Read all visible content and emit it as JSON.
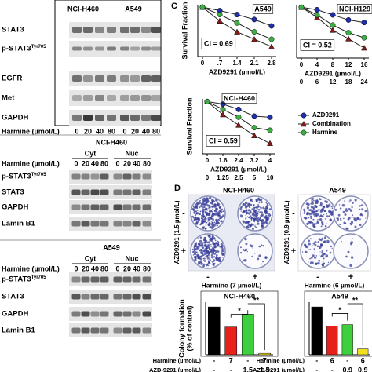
{
  "panel_a": {
    "cell_lines": [
      "NCI-H460",
      "A549"
    ],
    "proteins": [
      {
        "name": "STAT3"
      },
      {
        "name": "p-STAT3",
        "sup": "Tyr705"
      },
      {
        "name": "EGFR"
      },
      {
        "name": "Met"
      },
      {
        "name": "GAPDH"
      }
    ],
    "treatment_label": "Harmine (µmol/L)",
    "doses": [
      0,
      20,
      40,
      80,
      0,
      20,
      40,
      80
    ]
  },
  "panel_b": [
    {
      "cell_line": "NCI-H460",
      "fractions": [
        "Cyt",
        "Nuc"
      ],
      "treatment_label": "Harmine (µmol/L)",
      "doses": [
        0,
        20,
        40,
        80,
        0,
        20,
        40,
        80
      ],
      "proteins": [
        {
          "name": "p-STAT3",
          "sup": "Tyr705"
        },
        {
          "name": "STAT3"
        },
        {
          "name": "GAPDH"
        },
        {
          "name": "Lamin B1"
        }
      ]
    },
    {
      "cell_line": "A549",
      "fractions": [
        "Cyt",
        "Nuc"
      ],
      "treatment_label": "Harmine (µmol/L)",
      "doses": [
        0,
        20,
        40,
        80,
        0,
        20,
        40,
        80
      ],
      "proteins": [
        {
          "name": "p-STAT3",
          "sup": "Tyr705"
        },
        {
          "name": "STAT3"
        },
        {
          "name": "GAPDH"
        },
        {
          "name": "Lamin B1"
        }
      ]
    }
  ],
  "panel_c": {
    "label": "C"
  },
  "panel_d": {
    "label": "D",
    "plates": [
      {
        "title": "NCI-H460",
        "row_label": "AZD9291 (1.5 µmol/L)",
        "col_label": "Harmine (7 µmol/L)",
        "signs": [
          "-",
          "+"
        ]
      },
      {
        "title": "A549",
        "row_label": "AZD9291 (0.9 µmol/L)",
        "col_label": "Harmine (6 µmol/L)",
        "signs": [
          "-",
          "+"
        ]
      }
    ]
  },
  "chart_data": [
    {
      "type": "line",
      "title": "A549",
      "y_label": "Survival Fraction",
      "annotation": "CI = 0.69",
      "x_label": "AZD9291 (µmol/L)",
      "categories": [
        "0",
        ".7",
        "1.4",
        "2.1",
        "2.8"
      ],
      "ylim": [
        0,
        1.05
      ],
      "series": [
        {
          "name": "AZD9291",
          "color": "#1f2fa8",
          "values": [
            1,
            0.93,
            0.85,
            0.75,
            0.62
          ]
        },
        {
          "name": "Combination",
          "color": "#8b1a1a",
          "values": [
            1,
            0.72,
            0.5,
            0.35,
            0.2
          ]
        },
        {
          "name": "Harmine",
          "color": "#3cb043",
          "values": [
            1,
            0.85,
            0.68,
            0.5,
            0.35
          ]
        }
      ]
    },
    {
      "type": "line",
      "title": "NCI-H129",
      "annotation": "CI = 0.52",
      "x_label": "AZD9291 (µmol/L)",
      "categories": [
        "0",
        "4",
        "8",
        "12",
        "16"
      ],
      "categories2": [
        "0",
        "6",
        "12",
        "18",
        "24"
      ],
      "ylim": [
        0,
        1.05
      ],
      "series": [
        {
          "name": "AZD9291",
          "color": "#1f2fa8",
          "values": [
            1,
            0.95,
            0.85,
            0.75,
            0.7
          ]
        },
        {
          "name": "Combination",
          "color": "#8b1a1a",
          "values": [
            1,
            0.8,
            0.55,
            0.38,
            0.2
          ]
        },
        {
          "name": "Harmine",
          "color": "#3cb043",
          "values": [
            1,
            0.85,
            0.65,
            0.5,
            0.4
          ]
        }
      ]
    },
    {
      "type": "line",
      "title": "NCI-H460",
      "y_label": "Survival Fraction",
      "annotation": "CI = 0.59",
      "x_label": "AZD9291 (µmol/L)",
      "categories": [
        "0",
        "1.6",
        "2.4",
        "3.2",
        "4"
      ],
      "categories2": [
        "0",
        "1.25",
        "2.5",
        "5",
        "10"
      ],
      "ylim": [
        0,
        1.05
      ],
      "legend": "right",
      "series": [
        {
          "name": "AZD9291",
          "color": "#1f2fa8",
          "values": [
            1,
            0.95,
            0.85,
            0.72,
            0.7
          ]
        },
        {
          "name": "Combination",
          "color": "#8b1a1a",
          "values": [
            1,
            0.75,
            0.55,
            0.35,
            0.2
          ]
        },
        {
          "name": "Harmine",
          "color": "#3cb043",
          "values": [
            1,
            0.85,
            0.7,
            0.5,
            0.45
          ]
        }
      ]
    },
    {
      "type": "bar",
      "title": "NCI-H460",
      "y_label": [
        "Colony formation",
        "(% of control)"
      ],
      "values": [
        100,
        58,
        85,
        3
      ],
      "colors": [
        "#000000",
        "#e8201c",
        "#3ecf3e",
        "#f0e020"
      ],
      "ylim": [
        0,
        110
      ],
      "annotations": [
        "*",
        "**"
      ],
      "table": [
        {
          "label": "Harmine (µmol/L)",
          "cells": [
            "-",
            "7",
            "-",
            "7"
          ]
        },
        {
          "label": "AZD-9291 (µmol/L)",
          "cells": [
            "-",
            "-",
            "1.5",
            "1.5"
          ]
        }
      ]
    },
    {
      "type": "bar",
      "title": "A549",
      "values": [
        100,
        60,
        63,
        12
      ],
      "colors": [
        "#000000",
        "#e8201c",
        "#3ecf3e",
        "#f0e020"
      ],
      "ylim": [
        0,
        110
      ],
      "annotations": [
        "*",
        "**"
      ],
      "table": [
        {
          "label": "Harmine (µmol/L)",
          "cells": [
            "-",
            "6",
            "-",
            "6"
          ]
        },
        {
          "label": "AZD-9291 (µmol/L)",
          "cells": [
            "-",
            "-",
            "0.9",
            "0.9"
          ]
        }
      ]
    }
  ]
}
